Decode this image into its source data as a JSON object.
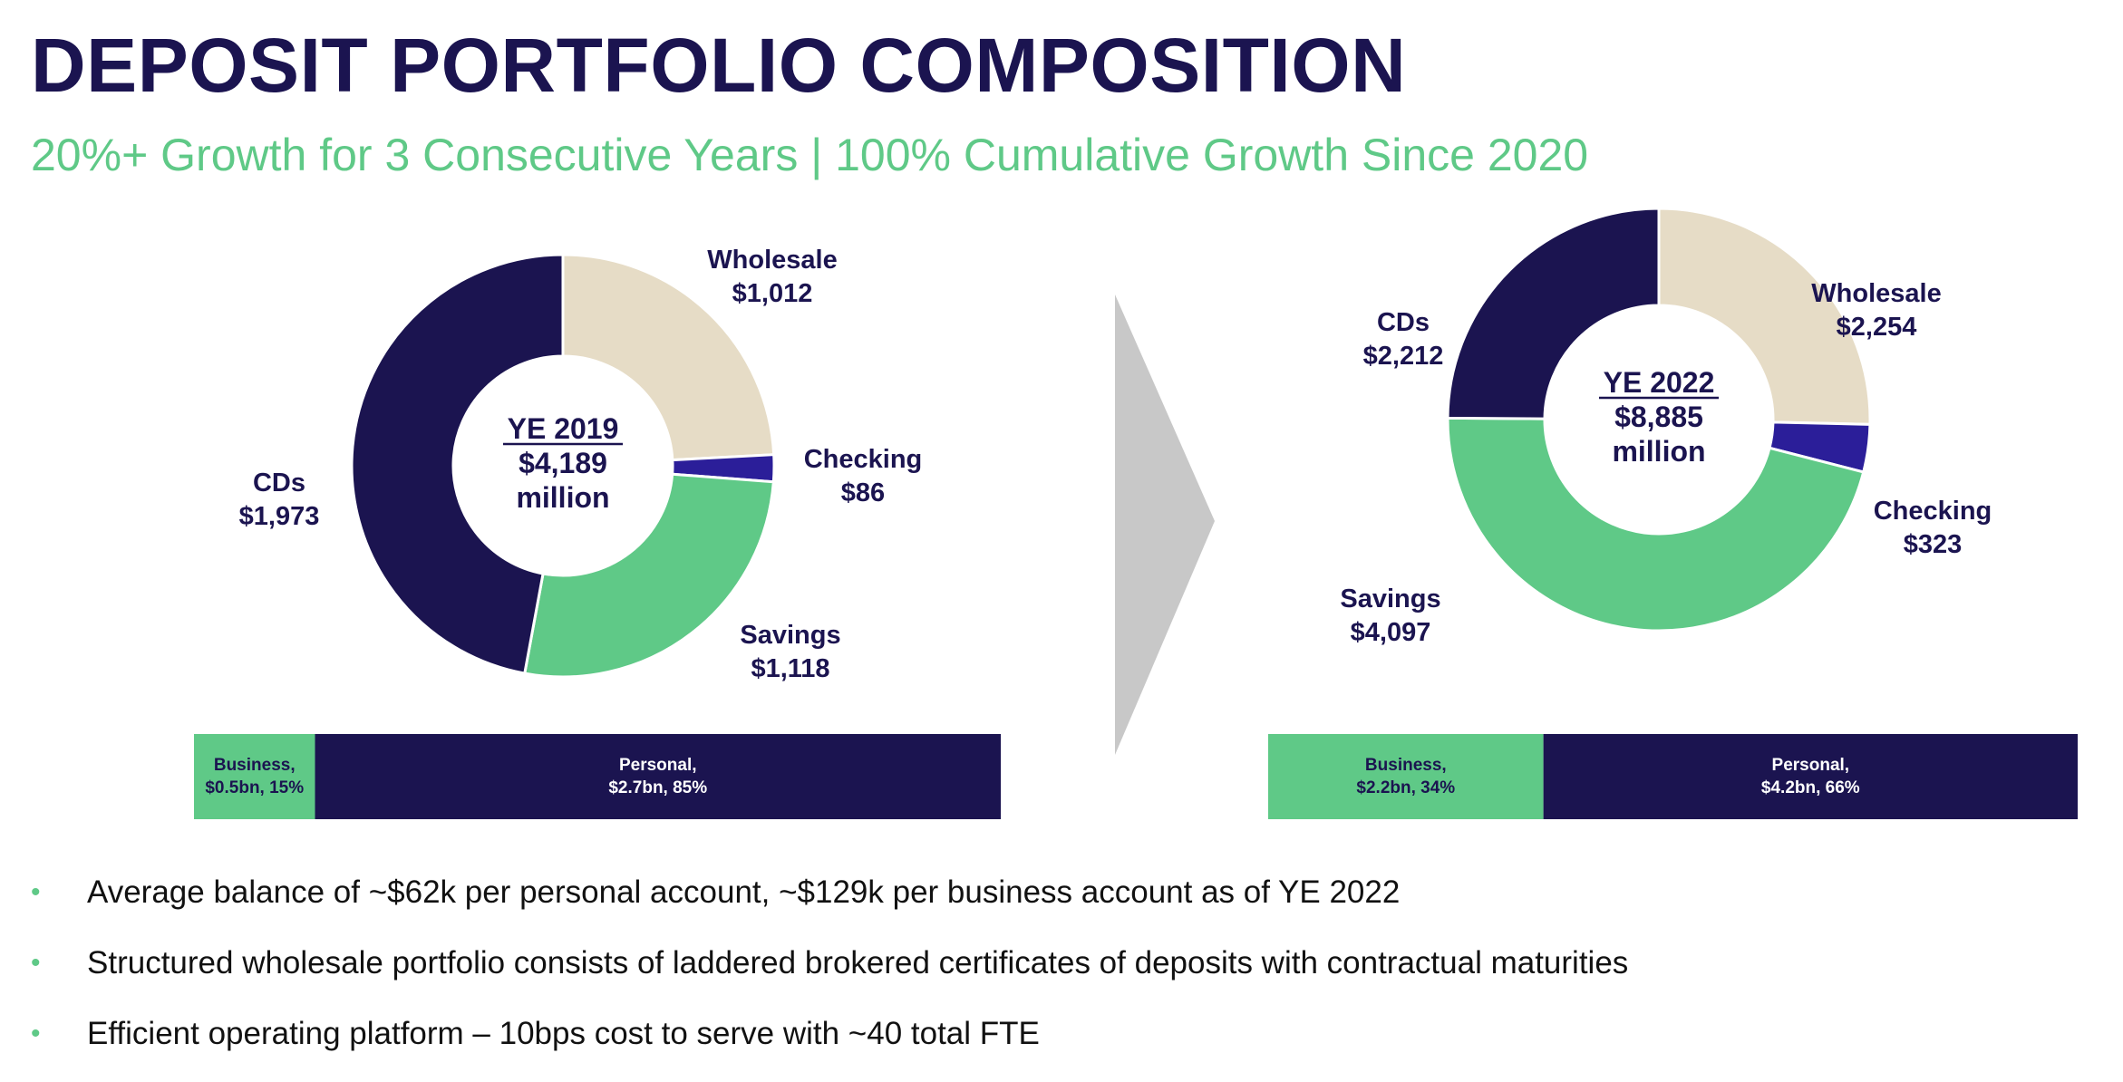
{
  "title": "DEPOSIT PORTFOLIO COMPOSITION",
  "subtitle": "20%+ Growth for 3 Consecutive Years | 100% Cumulative Growth Since 2020",
  "colors": {
    "Wholesale": "#e6dcc6",
    "Checking": "#2b1e99",
    "Savings": "#5fc987",
    "CDs": "#1b1450",
    "title": "#1b1450",
    "accent": "#5fc987",
    "arrow": "#c8c8c8"
  },
  "chart_data": [
    {
      "type": "pie",
      "donut": true,
      "center": [
        "YE 2019",
        "$4,189",
        "million"
      ],
      "slices": [
        {
          "name": "Wholesale",
          "value": 1012,
          "label": "$1,012"
        },
        {
          "name": "Checking",
          "value": 86,
          "label": "$86"
        },
        {
          "name": "Savings",
          "value": 1118,
          "label": "$1,118"
        },
        {
          "name": "CDs",
          "value": 1973,
          "label": "$1,973"
        }
      ],
      "mix_bar": [
        {
          "name": "Business,",
          "detail": "$0.5bn, 15%",
          "value": 15
        },
        {
          "name": "Personal,",
          "detail": "$2.7bn, 85%",
          "value": 85
        }
      ]
    },
    {
      "type": "pie",
      "donut": true,
      "center": [
        "YE 2022",
        "$8,885",
        "million"
      ],
      "slices": [
        {
          "name": "Wholesale",
          "value": 2254,
          "label": "$2,254"
        },
        {
          "name": "Checking",
          "value": 323,
          "label": "$323"
        },
        {
          "name": "Savings",
          "value": 4097,
          "label": "$4,097"
        },
        {
          "name": "CDs",
          "value": 2212,
          "label": "$2,212"
        }
      ],
      "mix_bar": [
        {
          "name": "Business,",
          "detail": "$2.2bn, 34%",
          "value": 34
        },
        {
          "name": "Personal,",
          "detail": "$4.2bn, 66%",
          "value": 66
        }
      ]
    }
  ],
  "bullets": [
    "Average balance of ~$62k per personal account, ~$129k per business account as of YE 2022",
    "Structured wholesale portfolio consists of laddered brokered certificates of deposits with contractual maturities",
    "Efficient operating platform – 10bps cost to serve with ~40 total FTE"
  ],
  "bullet_icon": "bullet-dot"
}
